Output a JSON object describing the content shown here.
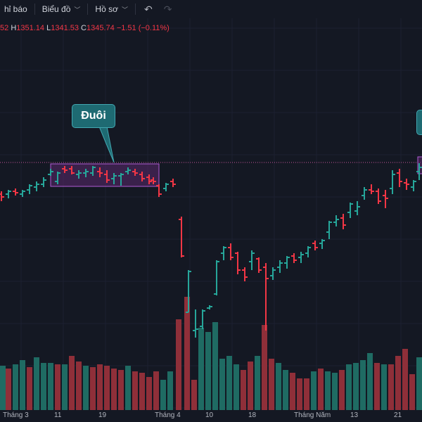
{
  "toolbar": {
    "indicators_label": "hỉ báo",
    "chart_label": "Biểu đồ",
    "profile_label": "Hồ sơ",
    "undo_icon": "undo-icon",
    "redo_icon": "redo-icon"
  },
  "ohlc": {
    "open_partial": "52",
    "high_label": "H",
    "high_value": "1351.14",
    "low_label": "L",
    "low_value": "1341.53",
    "close_label": "C",
    "close_value": "1345.74",
    "change": "−1.51 (−0.11%)"
  },
  "callout": {
    "text": "Đuôi"
  },
  "x_axis": {
    "labels": [
      "Tháng 3",
      "11",
      "19",
      "Tháng 4",
      "10",
      "18",
      "Tháng Năm",
      "13",
      "21"
    ]
  },
  "colors": {
    "up": "#26a69a",
    "down": "#f23645",
    "up_volume": "#1f6b63",
    "down_volume": "#8f2f39",
    "box_border": "#b05bd6",
    "box_fill": "#5a2a6e",
    "background": "#141823"
  },
  "chart_data": {
    "type": "bar",
    "x": [
      "Tháng 3",
      "11",
      "19",
      "Tháng 4",
      "10",
      "18",
      "Tháng Năm",
      "13",
      "21"
    ]
  }
}
